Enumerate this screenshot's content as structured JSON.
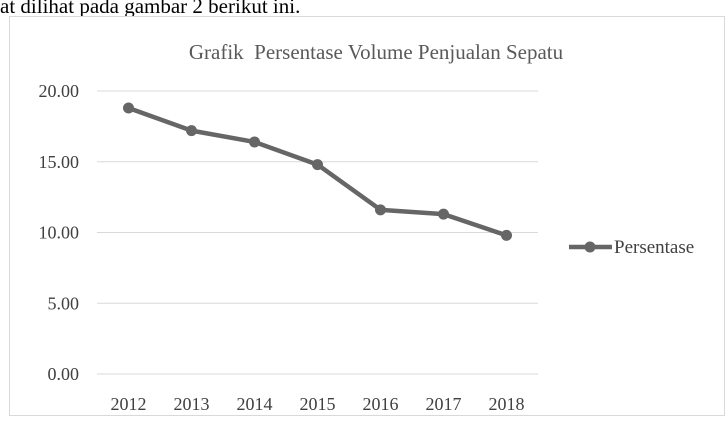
{
  "page": {
    "lead_text": "at dilihat pada gambar 2 berikut ini."
  },
  "colors": {
    "series": "#666666",
    "gridline": "#d9d9d9",
    "text": "#404040",
    "title": "#595959"
  },
  "chart_data": {
    "type": "line",
    "title": "Grafik  Persentase Volume Penjualan Sepatu",
    "xlabel": "",
    "ylabel": "",
    "categories": [
      "2012",
      "2013",
      "2014",
      "2015",
      "2016",
      "2017",
      "2018"
    ],
    "series": [
      {
        "name": "Persentase",
        "values": [
          18.8,
          17.2,
          16.4,
          14.8,
          11.6,
          11.3,
          9.8
        ]
      }
    ],
    "ylim": [
      0,
      20
    ],
    "yticks": [
      "0.00",
      "5.00",
      "10.00",
      "15.00",
      "20.00"
    ],
    "grid": "horizontal",
    "legend_position": "right"
  }
}
